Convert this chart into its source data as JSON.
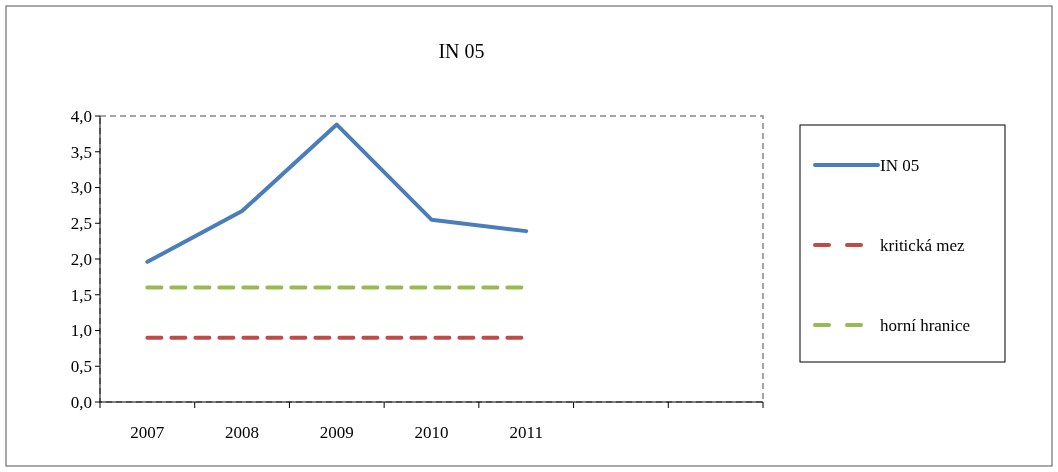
{
  "chart_data": {
    "type": "line",
    "title": "IN 05",
    "categories": [
      "2007",
      "2008",
      "2009",
      "2010",
      "2011",
      null,
      null
    ],
    "series": [
      {
        "name": "IN 05",
        "color": "#4a7ebb",
        "line_style": "solid",
        "values": [
          1.96,
          2.67,
          3.88,
          2.55,
          2.39,
          null,
          null
        ]
      },
      {
        "name": "kritická mez",
        "color": "#be4b48",
        "line_style": "dashed",
        "values": [
          0.9,
          0.9,
          0.9,
          0.9,
          0.9,
          null,
          null
        ]
      },
      {
        "name": "horní hranice",
        "color": "#98b954",
        "line_style": "dashed",
        "values": [
          1.6,
          1.6,
          1.6,
          1.6,
          1.6,
          null,
          null
        ]
      }
    ],
    "ylim": [
      0,
      4
    ],
    "yticks": [
      {
        "value": 0,
        "label": "0,0"
      },
      {
        "value": 0.5,
        "label": "0,5"
      },
      {
        "value": 1,
        "label": "1,0"
      },
      {
        "value": 1.5,
        "label": "1,5"
      },
      {
        "value": 2,
        "label": "2,0"
      },
      {
        "value": 2.5,
        "label": "2,5"
      },
      {
        "value": 3,
        "label": "3,0"
      },
      {
        "value": 3.5,
        "label": "3,5"
      },
      {
        "value": 4,
        "label": "4,0"
      }
    ],
    "grid": false,
    "legend": "right",
    "marker": "none"
  }
}
